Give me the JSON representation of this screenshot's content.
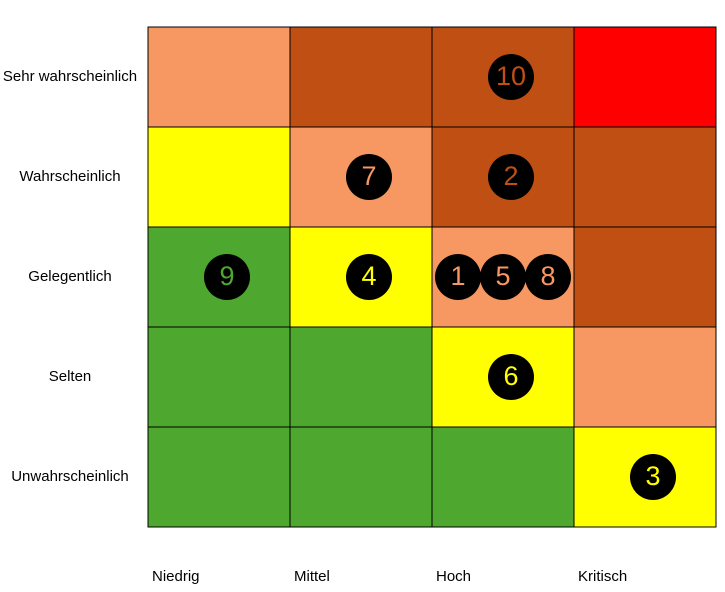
{
  "matrix": {
    "columns": [
      "Niedrig",
      "Mittel",
      "Hoch",
      "Kritisch"
    ],
    "rows": [
      {
        "label": "Sehr wahrscheinlich",
        "cells": [
          {
            "color": "#f79862",
            "markers": []
          },
          {
            "color": "#bf4f12",
            "markers": []
          },
          {
            "color": "#bf4f12",
            "markers": [
              "10"
            ]
          },
          {
            "color": "#ff0000",
            "markers": []
          }
        ]
      },
      {
        "label": "Wahrscheinlich",
        "cells": [
          {
            "color": "#ffff00",
            "markers": []
          },
          {
            "color": "#f79862",
            "markers": [
              "7"
            ]
          },
          {
            "color": "#bf4f12",
            "markers": [
              "2"
            ]
          },
          {
            "color": "#bf4f12",
            "markers": []
          }
        ]
      },
      {
        "label": "Gelegentlich",
        "cells": [
          {
            "color": "#4ea72e",
            "markers": [
              "9"
            ]
          },
          {
            "color": "#ffff00",
            "markers": [
              "4"
            ]
          },
          {
            "color": "#f79862",
            "markers": [
              "1",
              "5",
              "8"
            ]
          },
          {
            "color": "#bf4f12",
            "markers": []
          }
        ]
      },
      {
        "label": "Selten",
        "cells": [
          {
            "color": "#4ea72e",
            "markers": []
          },
          {
            "color": "#4ea72e",
            "markers": []
          },
          {
            "color": "#ffff00",
            "markers": [
              "6"
            ]
          },
          {
            "color": "#f79862",
            "markers": []
          }
        ]
      },
      {
        "label": "Unwahrscheinlich",
        "cells": [
          {
            "color": "#4ea72e",
            "markers": []
          },
          {
            "color": "#4ea72e",
            "markers": []
          },
          {
            "color": "#4ea72e",
            "markers": []
          },
          {
            "color": "#ffff00",
            "markers": [
              "3"
            ]
          }
        ]
      }
    ]
  }
}
